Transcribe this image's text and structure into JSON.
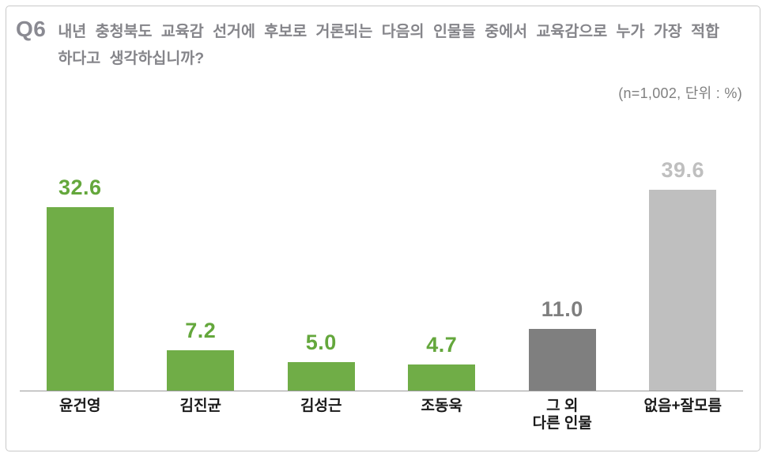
{
  "header": {
    "q_label": "Q6",
    "question": "내년 충청북도 교육감 선거에 후보로 거론되는 다음의 인물들 중에서 교육감으로 누가 가장 적합하다고 생각하십니까?",
    "note": "(n=1,002,  단위 : %)"
  },
  "colors": {
    "green_bar": "#70ad47",
    "dark_gray_bar": "#7f7f7f",
    "light_gray_bar": "#bfbfbf",
    "axis_line": "#999999",
    "frame_border": "#c9c9c9",
    "question_text": "#85858a",
    "category_text": "#1a1a1a"
  },
  "chart_data": {
    "type": "bar",
    "title": "내년 충청북도 교육감 선거에 후보로 거론되는 다음의 인물들 중에서 교육감으로 누가 가장 적합하다고 생각하십니까?",
    "question_no": "Q6",
    "sample_size": "1,002",
    "unit": "%",
    "categories": [
      "윤건영",
      "김진균",
      "김성근",
      "조동욱",
      "그 외\n다른 인물",
      "없음+잘모름"
    ],
    "values": [
      32.6,
      7.2,
      5.0,
      4.7,
      11.0,
      39.6
    ],
    "value_labels": [
      "32.6",
      "7.2",
      "5.0",
      "4.7",
      "11.0",
      "39.6"
    ],
    "bar_colors": [
      "#70ad47",
      "#70ad47",
      "#70ad47",
      "#70ad47",
      "#7f7f7f",
      "#bfbfbf"
    ],
    "label_colors": [
      "#64a73c",
      "#64a73c",
      "#64a73c",
      "#64a73c",
      "#7f7f7f",
      "#bfbfbf"
    ],
    "xlabel": "",
    "ylabel": "",
    "ylim": [
      0,
      41.3
    ],
    "grid": false,
    "legend": false,
    "baseline_axis": true
  }
}
